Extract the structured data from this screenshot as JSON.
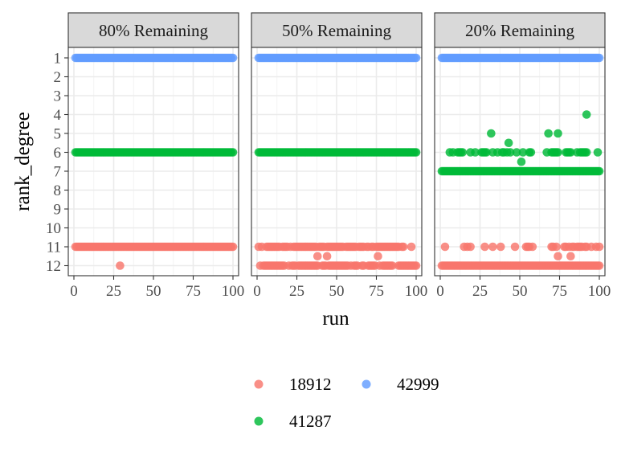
{
  "chart_data": {
    "type": "scatter",
    "xlabel": "run",
    "ylabel": "rank_degree",
    "xlim": [
      0,
      100
    ],
    "x_ticks": [
      0,
      25,
      50,
      75,
      100
    ],
    "y_ticks": [
      1,
      2,
      3,
      4,
      5,
      6,
      7,
      8,
      9,
      10,
      11,
      12
    ],
    "y_reversed": true,
    "grid": true,
    "legend_position": "bottom",
    "series": [
      {
        "name": "18912",
        "color": "#F8766D"
      },
      {
        "name": "41287",
        "color": "#00BA38"
      },
      {
        "name": "42999",
        "color": "#619CFF"
      }
    ],
    "legend_order": [
      "18912",
      "42999",
      "41287"
    ],
    "panels": [
      {
        "title": "80% Remaining",
        "points": {
          "42999": {
            "1": "all"
          },
          "41287": {
            "6": "all"
          },
          "18912": {
            "11": "all",
            "12": [
              29
            ]
          }
        }
      },
      {
        "title": "50% Remaining",
        "points": {
          "42999": {
            "1": "all"
          },
          "41287": {
            "6": "all"
          },
          "18912": {
            "11": [
              1,
              3,
              6,
              7,
              8,
              9,
              10,
              11,
              12,
              13,
              14,
              16,
              17,
              18,
              19,
              21,
              23,
              24,
              25,
              26,
              27,
              28,
              29,
              30,
              31,
              32,
              33,
              34,
              35,
              36,
              37,
              39,
              40,
              41,
              42,
              44,
              45,
              46,
              47,
              48,
              49,
              50,
              51,
              52,
              53,
              54,
              56,
              57,
              58,
              59,
              60,
              61,
              62,
              64,
              65,
              66,
              67,
              69,
              70,
              72,
              73,
              75,
              76,
              77,
              78,
              79,
              80,
              81,
              82,
              83,
              84,
              85,
              86,
              87,
              88,
              89,
              91,
              92,
              97
            ],
            "11.5": [
              38,
              44,
              76
            ],
            "12": [
              2,
              4,
              5,
              6,
              7,
              8,
              9,
              10,
              11,
              12,
              13,
              14,
              15,
              16,
              17,
              20,
              22,
              23,
              24,
              26,
              27,
              28,
              29,
              30,
              31,
              32,
              33,
              34,
              35,
              36,
              37,
              38,
              41,
              42,
              43,
              45,
              46,
              47,
              48,
              49,
              50,
              51,
              52,
              53,
              54,
              55,
              56,
              57,
              59,
              61,
              62,
              63,
              66,
              67,
              70,
              71,
              72,
              73,
              74,
              77,
              79,
              80,
              81,
              82,
              83,
              84,
              85,
              89,
              90,
              91,
              92,
              93,
              94,
              95,
              96,
              97,
              98,
              99,
              100
            ]
          }
        }
      },
      {
        "title": "20% Remaining",
        "points": {
          "42999": {
            "1": "all"
          },
          "41287": {
            "4": [
              92
            ],
            "5": [
              32,
              68,
              74
            ],
            "5.5": [
              43
            ],
            "6": [
              6,
              8,
              11,
              12,
              13,
              14,
              19,
              22,
              26,
              27,
              28,
              29,
              33,
              36,
              39,
              40,
              42,
              44,
              48,
              52,
              56,
              57,
              67,
              70,
              71,
              72,
              73,
              74,
              79,
              80,
              81,
              82,
              86,
              88,
              89,
              90,
              91,
              92,
              99
            ],
            "6.5": [
              51
            ],
            "7": "all"
          },
          "18912": {
            "11": [
              3,
              15,
              17,
              19,
              28,
              33,
              38,
              47,
              54,
              55,
              56,
              58,
              70,
              71,
              73,
              78,
              79,
              81,
              83,
              84,
              86,
              87,
              88,
              89,
              91,
              92,
              95,
              98,
              100
            ],
            "11.5": [
              74,
              82
            ],
            "12": "all"
          }
        }
      }
    ]
  }
}
